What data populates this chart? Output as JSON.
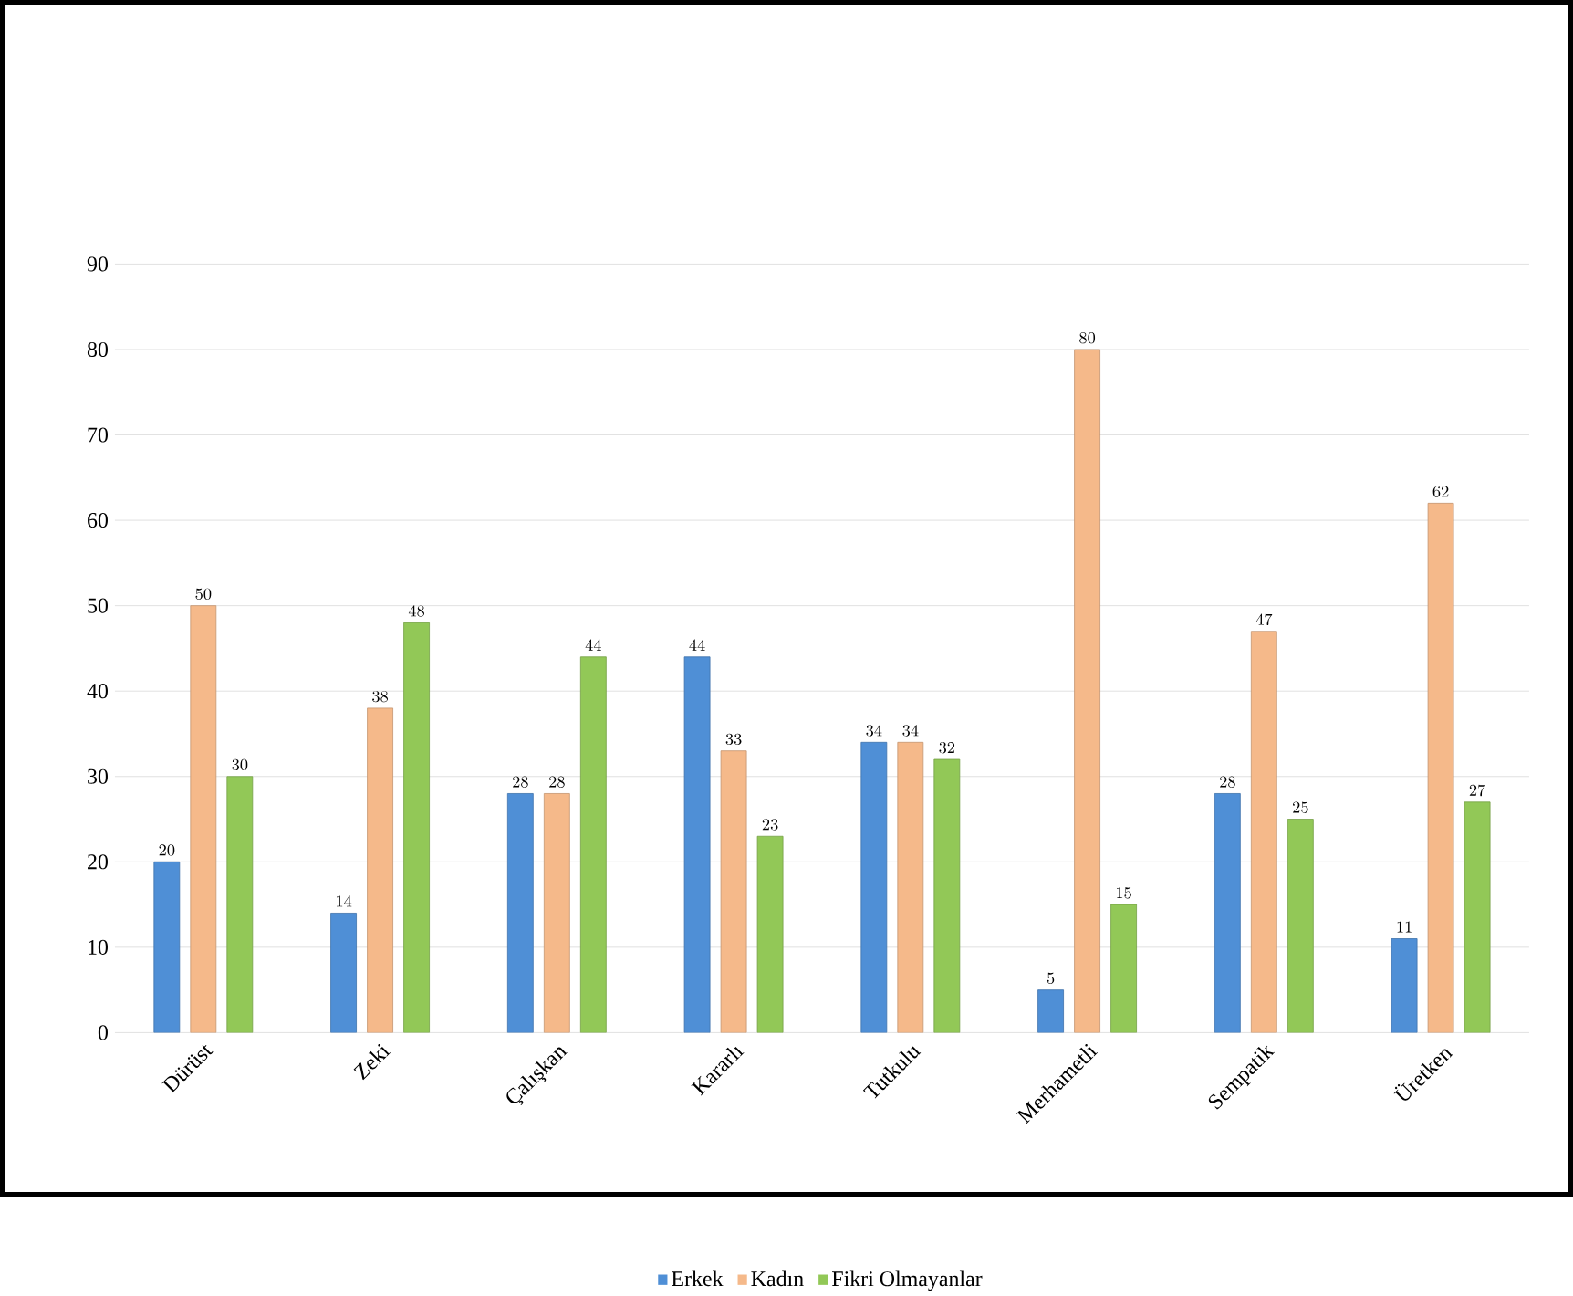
{
  "chart_data": {
    "type": "bar",
    "categories": [
      "Dürüst",
      "Zeki",
      "Çalışkan",
      "Kararlı",
      "Tutkulu",
      "Merhametli",
      "Sempatik",
      "Üretken"
    ],
    "series": [
      {
        "name": "Erkek",
        "color": "#4f8fd6",
        "values": [
          20,
          14,
          28,
          44,
          34,
          5,
          28,
          11
        ]
      },
      {
        "name": "Kadın",
        "color": "#f5b98a",
        "values": [
          50,
          38,
          28,
          33,
          34,
          80,
          47,
          62
        ]
      },
      {
        "name": "Fikri Olmayanlar",
        "color": "#92c857",
        "values": [
          30,
          48,
          44,
          23,
          32,
          15,
          25,
          27
        ]
      }
    ],
    "ylim": [
      0,
      90
    ],
    "yticks": [
      0,
      10,
      20,
      30,
      40,
      50,
      60,
      70,
      80,
      90
    ],
    "grid": "y",
    "legend": "bottom",
    "data_labels": true
  }
}
